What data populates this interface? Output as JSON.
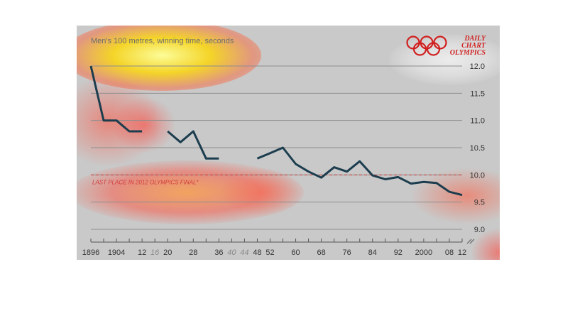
{
  "subtitle": "Men's 100 metres, winning time, seconds",
  "logo": {
    "line1": "DAILY",
    "line2": "CHART",
    "line3": "OLYMPICS"
  },
  "colors": {
    "background": "#c9c9c9",
    "line": "#1c3d4e",
    "reference": "#d13a3a",
    "grid": "#8e8e8e",
    "logo": "#d11f1f"
  },
  "chart_data": {
    "type": "line",
    "subtitle": "Men's 100 metres, winning time, seconds",
    "ylim": [
      8.7,
      12.3
    ],
    "xlim": [
      1896,
      2012
    ],
    "y_ticks": [
      "12.0",
      "11.5",
      "11.0",
      "10.5",
      "10.0",
      "9.5",
      "9.0"
    ],
    "x_tick_labels": [
      {
        "x": 1896,
        "label": "1896",
        "muted": false
      },
      {
        "x": 1904,
        "label": "1904",
        "muted": false
      },
      {
        "x": 1912,
        "label": "12",
        "muted": false
      },
      {
        "x": 1916,
        "label": "16",
        "muted": true
      },
      {
        "x": 1920,
        "label": "20",
        "muted": false
      },
      {
        "x": 1928,
        "label": "28",
        "muted": false
      },
      {
        "x": 1936,
        "label": "36",
        "muted": false
      },
      {
        "x": 1940,
        "label": "40",
        "muted": true
      },
      {
        "x": 1944,
        "label": "44",
        "muted": true
      },
      {
        "x": 1948,
        "label": "48",
        "muted": false
      },
      {
        "x": 1952,
        "label": "52",
        "muted": false
      },
      {
        "x": 1960,
        "label": "60",
        "muted": false
      },
      {
        "x": 1968,
        "label": "68",
        "muted": false
      },
      {
        "x": 1976,
        "label": "76",
        "muted": false
      },
      {
        "x": 1984,
        "label": "84",
        "muted": false
      },
      {
        "x": 1992,
        "label": "92",
        "muted": false
      },
      {
        "x": 2000,
        "label": "2000",
        "muted": false
      },
      {
        "x": 2008,
        "label": "08",
        "muted": false
      },
      {
        "x": 2012,
        "label": "12",
        "muted": false
      }
    ],
    "segments": [
      [
        [
          1896,
          12.0
        ],
        [
          1900,
          11.0
        ],
        [
          1904,
          11.0
        ],
        [
          1908,
          10.8
        ],
        [
          1912,
          10.8
        ]
      ],
      [
        [
          1920,
          10.8
        ],
        [
          1924,
          10.6
        ],
        [
          1928,
          10.8
        ],
        [
          1932,
          10.3
        ],
        [
          1936,
          10.3
        ]
      ],
      [
        [
          1948,
          10.3
        ],
        [
          1952,
          10.4
        ],
        [
          1956,
          10.5
        ],
        [
          1960,
          10.2
        ],
        [
          1964,
          10.06
        ],
        [
          1968,
          9.95
        ],
        [
          1972,
          10.14
        ],
        [
          1976,
          10.06
        ],
        [
          1980,
          10.25
        ],
        [
          1984,
          9.99
        ],
        [
          1988,
          9.92
        ],
        [
          1992,
          9.96
        ],
        [
          1996,
          9.84
        ],
        [
          2000,
          9.87
        ],
        [
          2004,
          9.85
        ],
        [
          2008,
          9.69
        ],
        [
          2012,
          9.63
        ]
      ]
    ],
    "reference_line": {
      "y": 10.0,
      "label": "LAST PLACE IN 2012 OLYMPICS FINAL*"
    }
  }
}
